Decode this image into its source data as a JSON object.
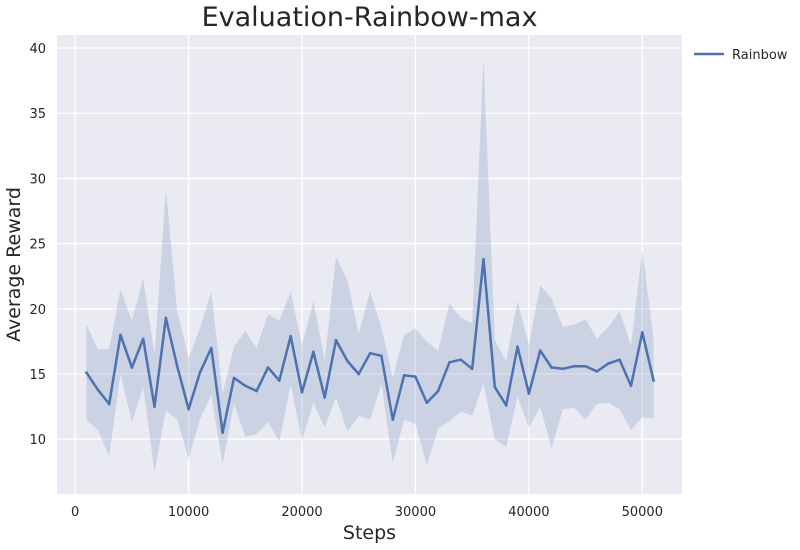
{
  "chart_data": {
    "type": "line",
    "title": "Evaluation-Rainbow-max",
    "xlabel": "Steps",
    "ylabel": "Average Reward",
    "xlim": [
      -1600,
      53500
    ],
    "ylim": [
      5.8,
      41
    ],
    "xticks": [
      0,
      10000,
      20000,
      30000,
      40000,
      50000
    ],
    "yticks": [
      10,
      15,
      20,
      25,
      30,
      35,
      40
    ],
    "grid": true,
    "legend_position": "outside-top-right",
    "colors": {
      "background": "#eaeaf2",
      "grid": "#ffffff",
      "line": "#4c72b0",
      "band": "#4c72b0"
    },
    "series": [
      {
        "name": "Rainbow",
        "x": [
          1000,
          2000,
          3000,
          4000,
          5000,
          6000,
          7000,
          8000,
          9000,
          10000,
          11000,
          12000,
          13000,
          14000,
          15000,
          16000,
          17000,
          18000,
          19000,
          20000,
          21000,
          22000,
          23000,
          24000,
          25000,
          26000,
          27000,
          28000,
          29000,
          30000,
          31000,
          32000,
          33000,
          34000,
          35000,
          36000,
          37000,
          38000,
          39000,
          40000,
          41000,
          42000,
          43000,
          44000,
          45000,
          46000,
          47000,
          48000,
          49000,
          50000,
          51000
        ],
        "mean": [
          15.1,
          13.8,
          12.7,
          18.0,
          15.5,
          17.7,
          12.5,
          19.3,
          15.6,
          12.3,
          15.1,
          17.0,
          10.5,
          14.7,
          14.1,
          13.7,
          15.5,
          14.5,
          17.9,
          13.6,
          16.7,
          13.2,
          17.6,
          16.0,
          15.0,
          16.6,
          16.4,
          11.5,
          14.9,
          14.8,
          12.8,
          13.7,
          15.9,
          16.1,
          15.4,
          23.8,
          14.0,
          12.6,
          17.1,
          13.5,
          16.8,
          15.5,
          15.4,
          15.6,
          15.6,
          15.2,
          15.8,
          16.1,
          14.1,
          18.2,
          14.5
        ],
        "upper": [
          18.8,
          16.9,
          16.9,
          21.5,
          19.1,
          22.3,
          16.5,
          29.2,
          19.8,
          16.2,
          18.5,
          21.3,
          13.5,
          17.1,
          18.3,
          17.0,
          19.6,
          19.1,
          21.3,
          17.2,
          20.6,
          16.1,
          24.0,
          22.2,
          18.1,
          21.3,
          18.6,
          14.7,
          18.0,
          18.5,
          17.5,
          16.8,
          20.4,
          19.3,
          18.9,
          39.2,
          17.6,
          16.0,
          20.6,
          17.2,
          21.8,
          20.8,
          18.6,
          18.8,
          19.2,
          17.7,
          18.6,
          19.8,
          17.2,
          24.5,
          17.6
        ],
        "lower": [
          11.5,
          10.7,
          8.7,
          15.0,
          11.3,
          14.0,
          7.5,
          12.2,
          11.5,
          8.5,
          11.5,
          13.4,
          8.1,
          12.7,
          10.2,
          10.4,
          11.3,
          9.8,
          14.2,
          9.9,
          12.8,
          10.9,
          13.2,
          10.6,
          11.8,
          11.5,
          14.2,
          8.2,
          11.5,
          11.2,
          8.0,
          10.8,
          11.4,
          12.1,
          11.8,
          14.3,
          10.0,
          9.4,
          13.3,
          10.9,
          12.5,
          9.3,
          12.3,
          12.4,
          11.5,
          12.7,
          12.8,
          12.3,
          10.7,
          11.7,
          11.6
        ]
      }
    ]
  }
}
